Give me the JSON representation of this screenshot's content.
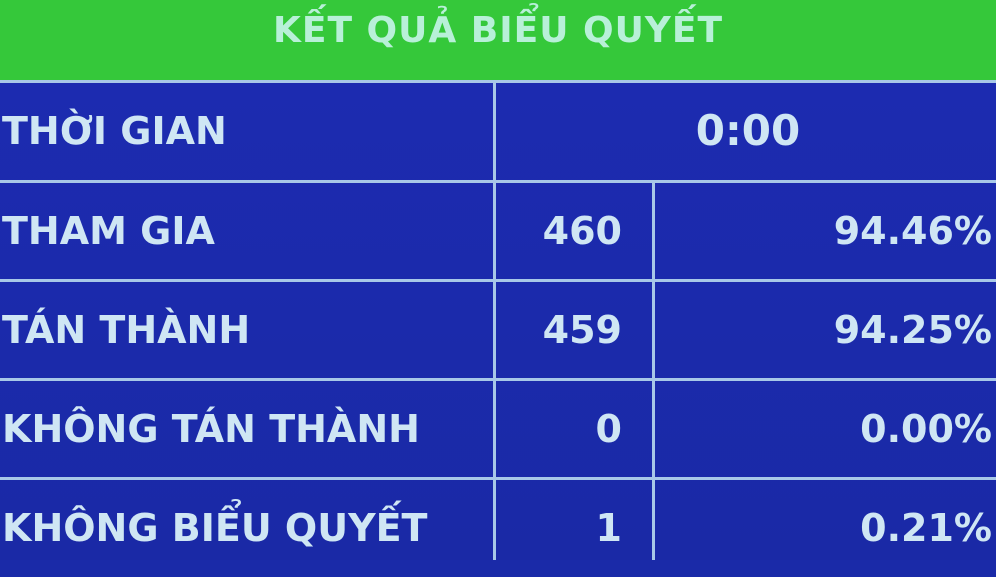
{
  "title": "KẾT QUẢ BIỂU QUYẾT",
  "time": {
    "label": "THỜI GIAN",
    "value": "0:00"
  },
  "rows": [
    {
      "label": "THAM GIA",
      "count": "460",
      "percent": "94.46%"
    },
    {
      "label": "TÁN THÀNH",
      "count": "459",
      "percent": "94.25%"
    },
    {
      "label": "KHÔNG TÁN THÀNH",
      "count": "0",
      "percent": "0.00%"
    },
    {
      "label": "KHÔNG BIỂU QUYẾT",
      "count": "1",
      "percent": "0.21%"
    }
  ]
}
